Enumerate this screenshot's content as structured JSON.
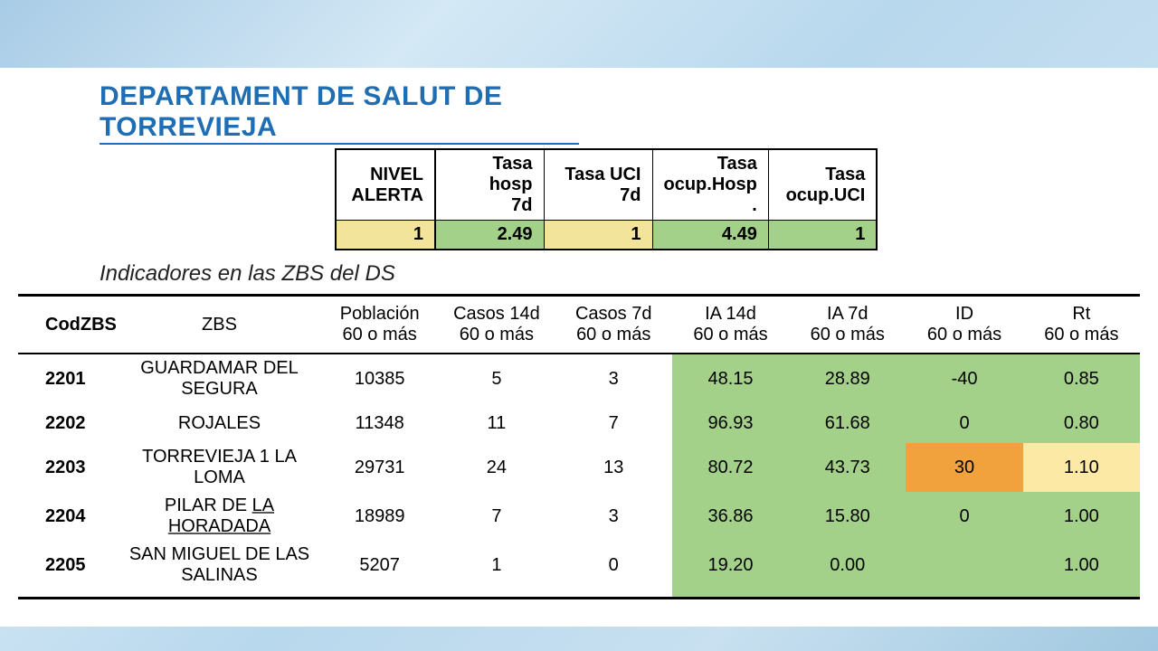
{
  "title": "DEPARTAMENT DE SALUT DE TORREVIEJA",
  "subtitle": "Indicadores en las ZBS del DS",
  "colors": {
    "yellow": "#f2e49a",
    "green": "#a4d18a",
    "orange": "#f2a23c",
    "light_yellow": "#fce9a6",
    "title_blue": "#1f6eb3"
  },
  "alert_table": {
    "headers": [
      "NIVEL ALERTA",
      "Tasa hosp 7d",
      "Tasa UCI 7d",
      "Tasa ocup.Hosp .",
      "Tasa ocup.UCI"
    ],
    "values": [
      "1",
      "2.49",
      "1",
      "4.49",
      "1"
    ],
    "value_bg": [
      "yellow",
      "green",
      "yellow",
      "green",
      "green"
    ]
  },
  "zbs_table": {
    "headers": [
      "CodZBS",
      "ZBS",
      "Población 60 o más",
      "Casos 14d 60 o más",
      "Casos 7d 60 o más",
      "IA 14d 60 o más",
      "IA 7d 60 o más",
      "ID 60 o más",
      "Rt 60 o más"
    ],
    "rows": [
      {
        "cells": [
          "2201",
          "GUARDAMAR DEL SEGURA",
          "10385",
          "5",
          "3",
          "48.15",
          "28.89",
          "-40",
          "0.85"
        ],
        "bg": [
          "",
          "",
          "",
          "",
          "",
          "green",
          "green",
          "green",
          "green"
        ]
      },
      {
        "cells": [
          "2202",
          "ROJALES",
          "11348",
          "11",
          "7",
          "96.93",
          "61.68",
          "0",
          "0.80"
        ],
        "bg": [
          "",
          "",
          "",
          "",
          "",
          "green",
          "green",
          "green",
          "green"
        ]
      },
      {
        "cells": [
          "2203",
          "TORREVIEJA 1 LA LOMA",
          "29731",
          "24",
          "13",
          "80.72",
          "43.73",
          "30",
          "1.10"
        ],
        "bg": [
          "",
          "",
          "",
          "",
          "",
          "green",
          "green",
          "orange",
          "light_yellow"
        ]
      },
      {
        "cells": [
          "2204",
          "PILAR DE LA HORADADA",
          "18989",
          "7",
          "3",
          "36.86",
          "15.80",
          "0",
          "1.00"
        ],
        "bg": [
          "",
          "",
          "",
          "",
          "",
          "green",
          "green",
          "green",
          "green"
        ],
        "underline_zbs": true
      },
      {
        "cells": [
          "2205",
          "SAN MIGUEL DE LAS SALINAS",
          "5207",
          "1",
          "0",
          "19.20",
          "0.00",
          "",
          "1.00"
        ],
        "bg": [
          "",
          "",
          "",
          "",
          "",
          "green",
          "green",
          "green",
          "green"
        ]
      }
    ]
  }
}
